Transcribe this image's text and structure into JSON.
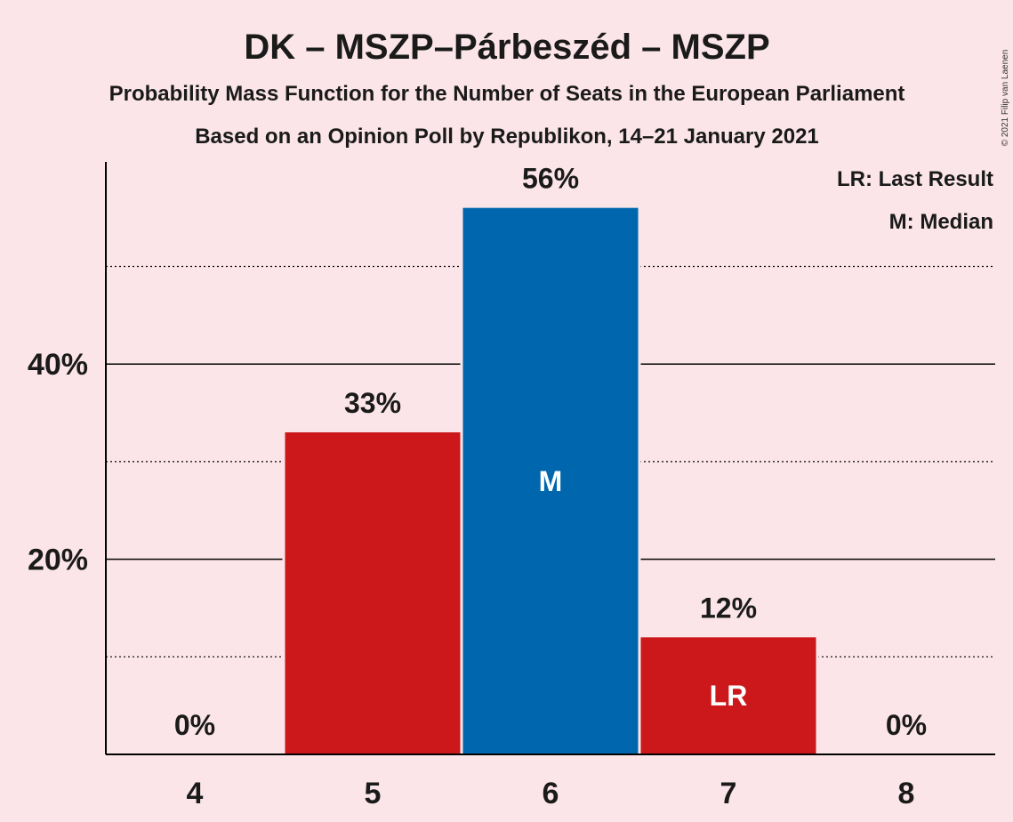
{
  "title": "DK – MSZP–Párbeszéd – MSZP",
  "subtitle1": "Probability Mass Function for the Number of Seats in the European Parliament",
  "subtitle2": "Based on an Opinion Poll by Republikon, 14–21 January 2021",
  "legend": {
    "lr": "LR: Last Result",
    "m": "M: Median"
  },
  "copyright": "© 2021 Filip van Laenen",
  "colors": {
    "background": "#fbe5e8",
    "party": "#cc181a",
    "median": "#0066ad",
    "axis": "#000000"
  },
  "chart_data": {
    "type": "bar",
    "categories": [
      "4",
      "5",
      "6",
      "7",
      "8"
    ],
    "values": [
      0,
      33,
      56,
      12,
      0
    ],
    "value_labels": [
      "0%",
      "33%",
      "56%",
      "12%",
      "0%"
    ],
    "bar_markers": [
      "",
      "",
      "M",
      "LR",
      ""
    ],
    "bar_colors": [
      "#cc181a",
      "#cc181a",
      "#0066ad",
      "#cc181a",
      "#cc181a"
    ],
    "y_ticks": [
      {
        "value": 20,
        "label": "20%"
      },
      {
        "value": 40,
        "label": "40%"
      }
    ],
    "minor_gridlines": [
      10,
      30,
      50
    ],
    "ylim": [
      0,
      60
    ],
    "xlabel": "",
    "ylabel": "",
    "legend_position": "top-right"
  }
}
